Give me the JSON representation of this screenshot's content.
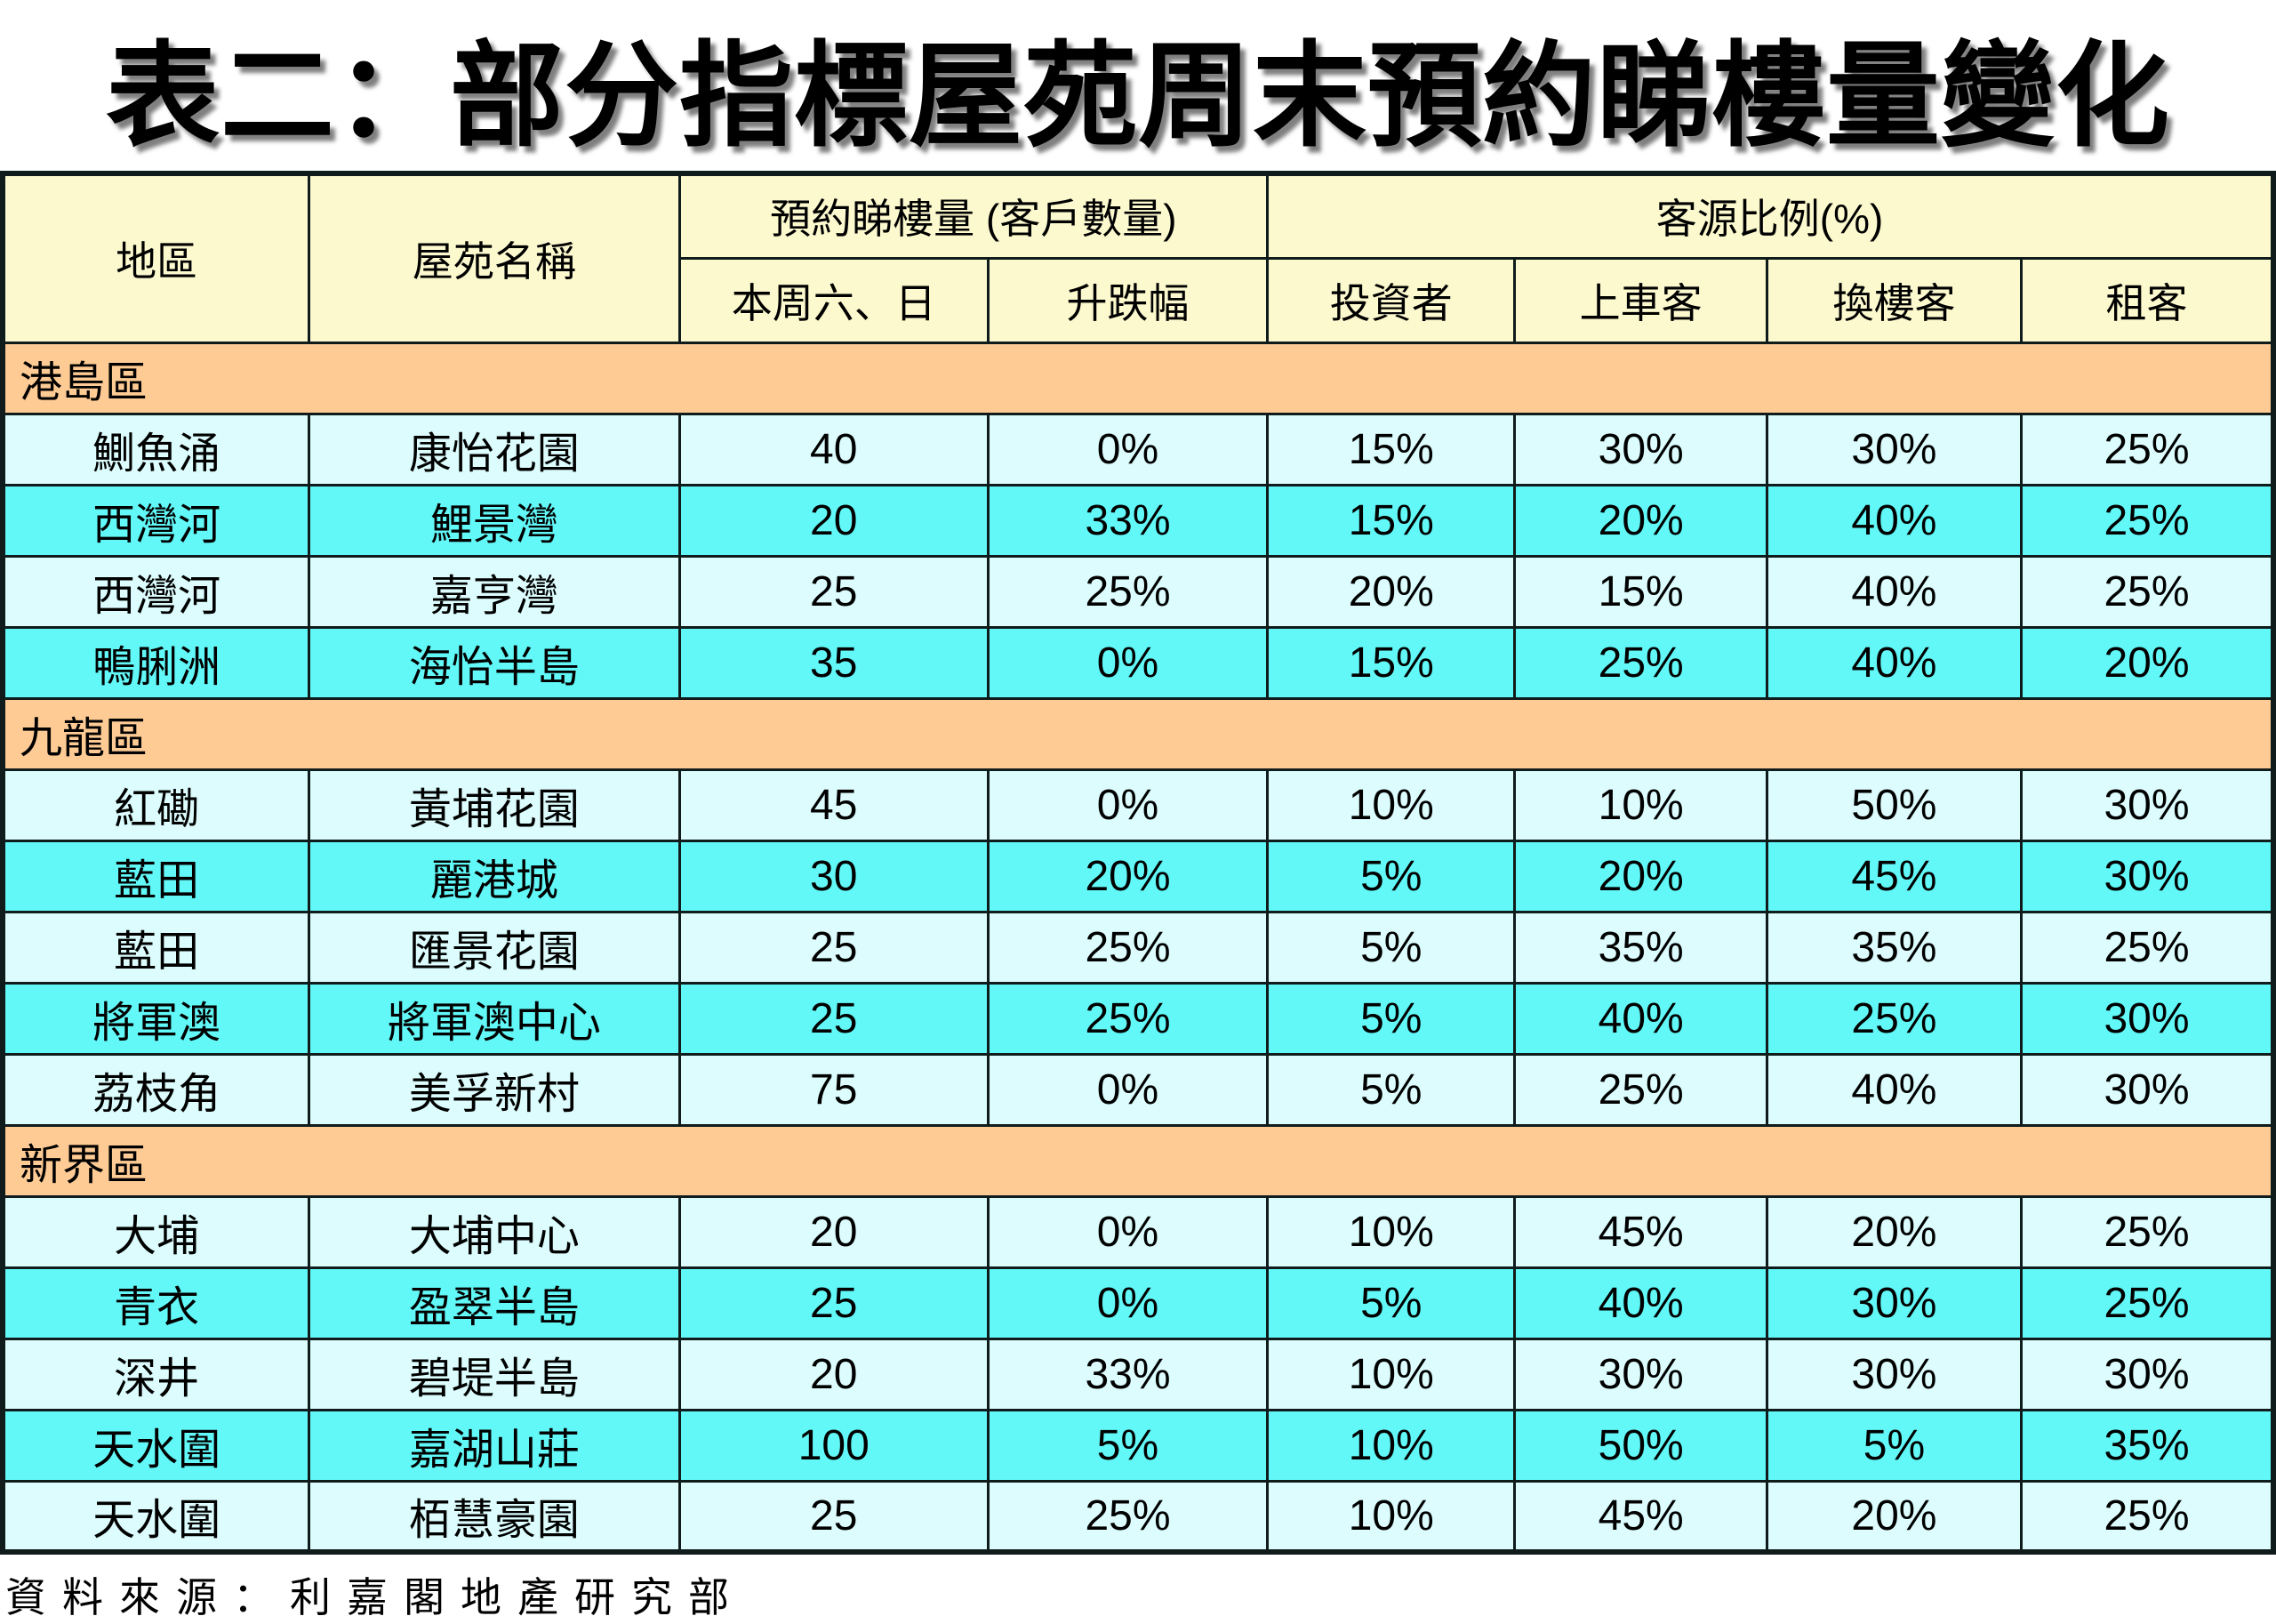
{
  "colors": {
    "header_bg": "#FCF9CE",
    "section_bg": "#FECB95",
    "row_light_bg": "#DCFCFD",
    "row_bright_bg": "#62F8F8",
    "border_color": "#101c1c",
    "text_color": "#000000",
    "page_bg": "#FFFFFF"
  },
  "chart_data": {
    "type": "table",
    "title": "表二：部分指標屋苑周末預約睇樓量變化",
    "columns": [
      "地區",
      "屋苑名稱",
      "本周六、日",
      "升跌幅",
      "投資者",
      "上車客",
      "換樓客",
      "租客"
    ],
    "column_groups": [
      {
        "label": "預約睇樓量 (客戶數量)",
        "columns": [
          "本周六、日",
          "升跌幅"
        ]
      },
      {
        "label": "客源比例(%)",
        "columns": [
          "投資者",
          "上車客",
          "換樓客",
          "租客"
        ]
      }
    ],
    "sections": [
      {
        "name": "港島區",
        "rows": [
          [
            "鰂魚涌",
            "康怡花園",
            "40",
            "0%",
            "15%",
            "30%",
            "30%",
            "25%"
          ],
          [
            "西灣河",
            "鯉景灣",
            "20",
            "33%",
            "15%",
            "20%",
            "40%",
            "25%"
          ],
          [
            "西灣河",
            "嘉亨灣",
            "25",
            "25%",
            "20%",
            "15%",
            "40%",
            "25%"
          ],
          [
            "鴨脷洲",
            "海怡半島",
            "35",
            "0%",
            "15%",
            "25%",
            "40%",
            "20%"
          ]
        ]
      },
      {
        "name": "九龍區",
        "rows": [
          [
            "紅磡",
            "黃埔花園",
            "45",
            "0%",
            "10%",
            "10%",
            "50%",
            "30%"
          ],
          [
            "藍田",
            "麗港城",
            "30",
            "20%",
            "5%",
            "20%",
            "45%",
            "30%"
          ],
          [
            "藍田",
            "匯景花園",
            "25",
            "25%",
            "5%",
            "35%",
            "35%",
            "25%"
          ],
          [
            "將軍澳",
            "將軍澳中心",
            "25",
            "25%",
            "5%",
            "40%",
            "25%",
            "30%"
          ],
          [
            "荔枝角",
            "美孚新村",
            "75",
            "0%",
            "5%",
            "25%",
            "40%",
            "30%"
          ]
        ]
      },
      {
        "name": "新界區",
        "rows": [
          [
            "大埔",
            "大埔中心",
            "20",
            "0%",
            "10%",
            "45%",
            "20%",
            "25%"
          ],
          [
            "青衣",
            "盈翠半島",
            "25",
            "0%",
            "5%",
            "40%",
            "30%",
            "25%"
          ],
          [
            "深井",
            "碧堤半島",
            "20",
            "33%",
            "10%",
            "30%",
            "30%",
            "30%"
          ],
          [
            "天水圍",
            "嘉湖山莊",
            "100",
            "5%",
            "10%",
            "50%",
            "5%",
            "35%"
          ],
          [
            "天水圍",
            "栢慧豪園",
            "25",
            "25%",
            "10%",
            "45%",
            "20%",
            "25%"
          ]
        ]
      }
    ],
    "source_note": "資料來源：利嘉閣地產研究部"
  }
}
